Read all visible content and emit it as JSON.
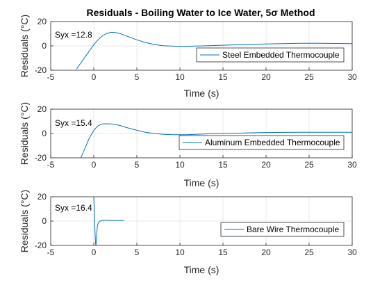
{
  "chart_data": [
    {
      "type": "line",
      "title": "Residuals - Boiling Water to Ice Water, 5σ Method",
      "xlabel": "Time (s)",
      "ylabel": "Residuals (°C)",
      "xlim": [
        -5,
        30
      ],
      "ylim": [
        -20,
        20
      ],
      "xticks": [
        -5,
        0,
        5,
        10,
        15,
        20,
        25,
        30
      ],
      "yticks": [
        -20,
        0,
        20
      ],
      "grid": true,
      "legend_position": "right",
      "annotation": "Syx =12.8",
      "color": "#0072BD",
      "series": [
        {
          "name": "Steel Embedded Thermocouple",
          "x": [
            -2.0,
            -1.5,
            -1.0,
            -0.5,
            0.0,
            0.5,
            1.0,
            1.5,
            2.0,
            2.5,
            3.0,
            3.5,
            4.0,
            5.0,
            6.0,
            7.0,
            8.0,
            9.0,
            10.0,
            11.0,
            12.0,
            14.0,
            16.0,
            18.0,
            20.0,
            22.0,
            24.0,
            26.0,
            28.0,
            30.0
          ],
          "y": [
            -19.0,
            -14.0,
            -9.0,
            -4.0,
            1.0,
            5.0,
            8.2,
            10.2,
            11.2,
            11.0,
            10.2,
            9.0,
            7.6,
            5.0,
            2.8,
            1.2,
            0.2,
            -0.2,
            -0.4,
            -0.3,
            -0.1,
            0.3,
            0.8,
            1.2,
            1.6,
            1.9,
            2.1,
            2.1,
            2.0,
            1.8
          ]
        }
      ]
    },
    {
      "type": "line",
      "xlabel": "Time (s)",
      "ylabel": "Residuals (°C)",
      "xlim": [
        -5,
        30
      ],
      "ylim": [
        -20,
        20
      ],
      "xticks": [
        -5,
        0,
        5,
        10,
        15,
        20,
        25,
        30
      ],
      "yticks": [
        -20,
        0,
        20
      ],
      "grid": true,
      "legend_position": "right",
      "annotation": "Syx =15.4",
      "color": "#0072BD",
      "series": [
        {
          "name": "Aluminum Embedded Thermocouple",
          "x": [
            -1.5,
            -1.2,
            -0.9,
            -0.6,
            -0.3,
            0.0,
            0.3,
            0.6,
            1.0,
            1.5,
            2.0,
            2.5,
            3.0,
            4.0,
            5.0,
            6.0,
            7.0,
            8.0,
            9.0,
            10.0,
            11.0,
            12.0,
            14.0,
            16.0,
            18.0,
            20.0,
            22.0,
            24.0,
            26.0,
            28.0,
            30.0
          ],
          "y": [
            -20.0,
            -15.0,
            -10.0,
            -5.0,
            -1.0,
            2.5,
            5.0,
            6.8,
            7.8,
            8.0,
            7.9,
            7.4,
            6.6,
            4.5,
            2.6,
            1.0,
            0.0,
            -0.6,
            -0.9,
            -1.0,
            -0.9,
            -0.6,
            -0.2,
            0.2,
            0.5,
            0.8,
            0.9,
            1.0,
            1.0,
            1.0,
            1.0
          ]
        }
      ]
    },
    {
      "type": "line",
      "xlabel": "Time (s)",
      "ylabel": "Residuals (°C)",
      "xlim": [
        -5,
        30
      ],
      "ylim": [
        -20,
        20
      ],
      "xticks": [
        -5,
        0,
        5,
        10,
        15,
        20,
        25,
        30
      ],
      "yticks": [
        -20,
        0,
        20
      ],
      "grid": true,
      "legend_position": "right",
      "annotation": "Syx =16.4",
      "color": "#0072BD",
      "series": [
        {
          "name": "Bare Wire Thermocouple",
          "x": [
            0.0,
            0.05,
            0.1,
            0.15,
            0.2,
            0.25,
            0.3,
            0.35,
            0.4,
            0.5,
            0.6,
            0.7,
            0.8,
            1.0,
            1.2,
            1.5,
            2.0,
            2.5,
            3.0,
            3.5
          ],
          "y": [
            20.0,
            10.0,
            0.0,
            -10.0,
            -18.0,
            -20.0,
            -16.0,
            -10.0,
            -5.0,
            -2.0,
            -0.8,
            -0.2,
            0.2,
            0.5,
            0.6,
            0.6,
            0.5,
            0.5,
            0.5,
            0.5
          ]
        }
      ]
    }
  ]
}
